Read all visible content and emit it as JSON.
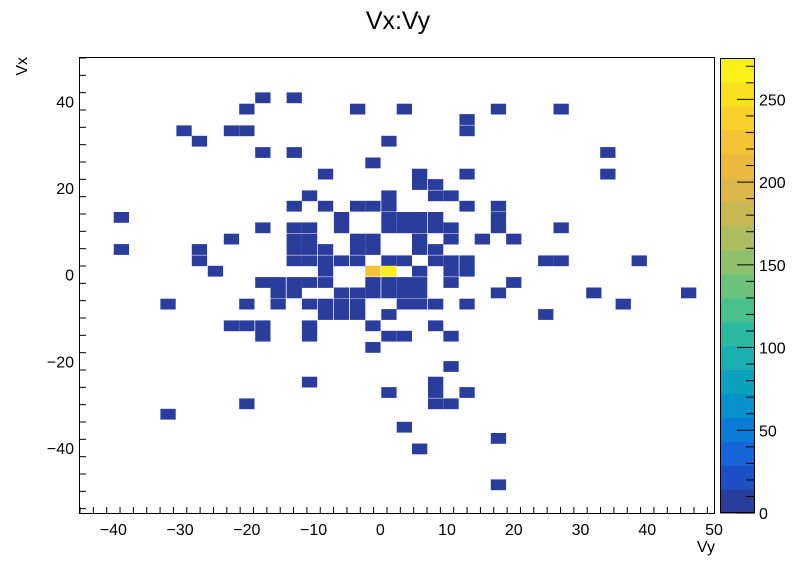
{
  "chart_data": {
    "type": "heatmap",
    "title": "Vx:Vy",
    "xlabel": "Vy",
    "ylabel": "Vx",
    "xlim": [
      -45,
      50
    ],
    "ylim": [
      -55,
      50
    ],
    "x_ticks": [
      -40,
      -30,
      -20,
      -10,
      0,
      10,
      20,
      30,
      40,
      50
    ],
    "x_tick_labels": [
      "−40",
      "−30",
      "−20",
      "−10",
      "0",
      "10",
      "20",
      "30",
      "40",
      "50"
    ],
    "y_ticks": [
      -40,
      -20,
      0,
      20,
      40
    ],
    "y_tick_labels": [
      "−40",
      "−20",
      "0",
      "20",
      "40"
    ],
    "colorbar": {
      "min": 0,
      "max": 275,
      "ticks": [
        0,
        50,
        100,
        150,
        200,
        250
      ],
      "tick_labels": [
        "0",
        "50",
        "100",
        "150",
        "200",
        "250"
      ],
      "palette": [
        "#2b3d9c",
        "#1f4fc4",
        "#1565d8",
        "#0b7bd6",
        "#0690cc",
        "#0ba2c0",
        "#1aafb1",
        "#2db9a0",
        "#49c08c",
        "#6bc27a",
        "#8fc06b",
        "#aebc60",
        "#c8b755",
        "#dcb64a",
        "#ebb93e",
        "#f4c235",
        "#f9d02a",
        "#fbe01e",
        "#fbf01a"
      ]
    },
    "x_bin_width": 2.3,
    "y_bin_width": 2.5,
    "cells": [
      {
        "vy": -17.6,
        "vx": 40.8,
        "count": 3
      },
      {
        "vy": -12.9,
        "vx": 40.8,
        "count": 3
      },
      {
        "vy": -20.0,
        "vx": 38.2,
        "count": 3
      },
      {
        "vy": -3.4,
        "vx": 38.2,
        "count": 3
      },
      {
        "vy": 3.6,
        "vx": 38.2,
        "count": 3
      },
      {
        "vy": 17.7,
        "vx": 38.2,
        "count": 3
      },
      {
        "vy": 27.1,
        "vx": 38.2,
        "count": 3
      },
      {
        "vy": 13.0,
        "vx": 35.8,
        "count": 3
      },
      {
        "vy": -29.4,
        "vx": 33.2,
        "count": 3
      },
      {
        "vy": -22.3,
        "vx": 33.2,
        "count": 3
      },
      {
        "vy": -20.0,
        "vx": 33.2,
        "count": 3
      },
      {
        "vy": 13.0,
        "vx": 33.2,
        "count": 3
      },
      {
        "vy": -27.1,
        "vx": 30.8,
        "count": 3
      },
      {
        "vy": 1.3,
        "vx": 30.8,
        "count": 3
      },
      {
        "vy": -17.6,
        "vx": 28.2,
        "count": 3
      },
      {
        "vy": -12.9,
        "vx": 28.2,
        "count": 3
      },
      {
        "vy": 34.1,
        "vx": 28.2,
        "count": 3
      },
      {
        "vy": -1.1,
        "vx": 25.8,
        "count": 3
      },
      {
        "vy": -8.2,
        "vx": 23.2,
        "count": 3
      },
      {
        "vy": 5.9,
        "vx": 23.2,
        "count": 3
      },
      {
        "vy": 13.0,
        "vx": 23.2,
        "count": 3
      },
      {
        "vy": 34.1,
        "vx": 23.2,
        "count": 3
      },
      {
        "vy": 5.9,
        "vx": 20.8,
        "count": 3
      },
      {
        "vy": 8.3,
        "vx": 20.8,
        "count": 3
      },
      {
        "vy": -10.6,
        "vx": 18.2,
        "count": 3
      },
      {
        "vy": 1.3,
        "vx": 18.2,
        "count": 3
      },
      {
        "vy": 8.3,
        "vx": 18.2,
        "count": 3
      },
      {
        "vy": 10.6,
        "vx": 18.2,
        "count": 3
      },
      {
        "vy": -12.9,
        "vx": 15.8,
        "count": 3
      },
      {
        "vy": -8.2,
        "vx": 15.8,
        "count": 3
      },
      {
        "vy": -3.4,
        "vx": 15.8,
        "count": 3
      },
      {
        "vy": -1.1,
        "vx": 15.8,
        "count": 3
      },
      {
        "vy": 1.3,
        "vx": 15.8,
        "count": 3
      },
      {
        "vy": 13.0,
        "vx": 15.8,
        "count": 3
      },
      {
        "vy": 17.7,
        "vx": 15.8,
        "count": 3
      },
      {
        "vy": -38.8,
        "vx": 13.2,
        "count": 3
      },
      {
        "vy": -5.8,
        "vx": 13.2,
        "count": 3
      },
      {
        "vy": 1.3,
        "vx": 13.2,
        "count": 3
      },
      {
        "vy": 3.6,
        "vx": 13.2,
        "count": 3
      },
      {
        "vy": 5.9,
        "vx": 13.2,
        "count": 3
      },
      {
        "vy": 8.3,
        "vx": 13.2,
        "count": 3
      },
      {
        "vy": 17.7,
        "vx": 13.2,
        "count": 3
      },
      {
        "vy": -17.6,
        "vx": 10.8,
        "count": 3
      },
      {
        "vy": -12.9,
        "vx": 10.8,
        "count": 3
      },
      {
        "vy": -10.6,
        "vx": 10.8,
        "count": 3
      },
      {
        "vy": -5.8,
        "vx": 10.8,
        "count": 3
      },
      {
        "vy": 1.3,
        "vx": 10.8,
        "count": 3
      },
      {
        "vy": 3.6,
        "vx": 10.8,
        "count": 3
      },
      {
        "vy": 5.9,
        "vx": 10.8,
        "count": 3
      },
      {
        "vy": 8.3,
        "vx": 10.8,
        "count": 3
      },
      {
        "vy": 10.6,
        "vx": 10.8,
        "count": 3
      },
      {
        "vy": 17.7,
        "vx": 10.8,
        "count": 3
      },
      {
        "vy": 27.1,
        "vx": 10.8,
        "count": 3
      },
      {
        "vy": -22.3,
        "vx": 8.2,
        "count": 3
      },
      {
        "vy": -12.9,
        "vx": 8.2,
        "count": 3
      },
      {
        "vy": -10.6,
        "vx": 8.2,
        "count": 3
      },
      {
        "vy": -3.4,
        "vx": 8.2,
        "count": 3
      },
      {
        "vy": -1.1,
        "vx": 8.2,
        "count": 3
      },
      {
        "vy": 5.9,
        "vx": 8.2,
        "count": 3
      },
      {
        "vy": 10.6,
        "vx": 8.2,
        "count": 3
      },
      {
        "vy": 15.3,
        "vx": 8.2,
        "count": 3
      },
      {
        "vy": 20.0,
        "vx": 8.2,
        "count": 3
      },
      {
        "vy": -38.8,
        "vx": 5.8,
        "count": 3
      },
      {
        "vy": -27.1,
        "vx": 5.8,
        "count": 3
      },
      {
        "vy": -12.9,
        "vx": 5.8,
        "count": 3
      },
      {
        "vy": -10.6,
        "vx": 5.8,
        "count": 3
      },
      {
        "vy": -8.2,
        "vx": 5.8,
        "count": 3
      },
      {
        "vy": -3.4,
        "vx": 5.8,
        "count": 3
      },
      {
        "vy": -1.1,
        "vx": 5.8,
        "count": 3
      },
      {
        "vy": 5.9,
        "vx": 5.8,
        "count": 3
      },
      {
        "vy": 8.3,
        "vx": 5.8,
        "count": 3
      },
      {
        "vy": -27.1,
        "vx": 3.2,
        "count": 3
      },
      {
        "vy": -12.9,
        "vx": 3.2,
        "count": 3
      },
      {
        "vy": -10.6,
        "vx": 3.2,
        "count": 3
      },
      {
        "vy": -8.2,
        "vx": 3.2,
        "count": 3
      },
      {
        "vy": -5.8,
        "vx": 3.2,
        "count": 3
      },
      {
        "vy": -3.4,
        "vx": 3.2,
        "count": 3
      },
      {
        "vy": 1.3,
        "vx": 3.2,
        "count": 3
      },
      {
        "vy": 3.6,
        "vx": 3.2,
        "count": 3
      },
      {
        "vy": 8.3,
        "vx": 3.2,
        "count": 3
      },
      {
        "vy": 10.6,
        "vx": 3.2,
        "count": 3
      },
      {
        "vy": 13.0,
        "vx": 3.2,
        "count": 3
      },
      {
        "vy": 24.8,
        "vx": 3.2,
        "count": 3
      },
      {
        "vy": 27.1,
        "vx": 3.2,
        "count": 3
      },
      {
        "vy": 38.8,
        "vx": 3.2,
        "count": 3
      },
      {
        "vy": -24.7,
        "vx": 0.8,
        "count": 3
      },
      {
        "vy": -8.2,
        "vx": 0.8,
        "count": 3
      },
      {
        "vy": -1.1,
        "vx": 0.8,
        "count": 220
      },
      {
        "vy": 1.3,
        "vx": 0.8,
        "count": 275
      },
      {
        "vy": 5.9,
        "vx": 0.8,
        "count": 3
      },
      {
        "vy": 10.6,
        "vx": 0.8,
        "count": 3
      },
      {
        "vy": 13.0,
        "vx": 0.8,
        "count": 3
      },
      {
        "vy": -17.6,
        "vx": -1.8,
        "count": 3
      },
      {
        "vy": -15.3,
        "vx": -1.8,
        "count": 3
      },
      {
        "vy": -12.9,
        "vx": -1.8,
        "count": 3
      },
      {
        "vy": -10.6,
        "vx": -1.8,
        "count": 3
      },
      {
        "vy": -8.2,
        "vx": -1.8,
        "count": 3
      },
      {
        "vy": -1.1,
        "vx": -1.8,
        "count": 3
      },
      {
        "vy": 1.3,
        "vx": -1.8,
        "count": 3
      },
      {
        "vy": 3.6,
        "vx": -1.8,
        "count": 3
      },
      {
        "vy": 5.9,
        "vx": -1.8,
        "count": 3
      },
      {
        "vy": 10.6,
        "vx": -1.8,
        "count": 3
      },
      {
        "vy": 20.0,
        "vx": -1.8,
        "count": 3
      },
      {
        "vy": -15.3,
        "vx": -4.2,
        "count": 3
      },
      {
        "vy": -12.9,
        "vx": -4.2,
        "count": 3
      },
      {
        "vy": -5.8,
        "vx": -4.2,
        "count": 3
      },
      {
        "vy": -3.4,
        "vx": -4.2,
        "count": 3
      },
      {
        "vy": -1.1,
        "vx": -4.2,
        "count": 3
      },
      {
        "vy": 1.3,
        "vx": -4.2,
        "count": 3
      },
      {
        "vy": 3.6,
        "vx": -4.2,
        "count": 3
      },
      {
        "vy": 5.9,
        "vx": -4.2,
        "count": 3
      },
      {
        "vy": 17.7,
        "vx": -4.2,
        "count": 3
      },
      {
        "vy": 32.0,
        "vx": -4.2,
        "count": 3
      },
      {
        "vy": 46.2,
        "vx": -4.2,
        "count": 3
      },
      {
        "vy": -31.8,
        "vx": -6.8,
        "count": 3
      },
      {
        "vy": -20.0,
        "vx": -6.8,
        "count": 3
      },
      {
        "vy": -15.3,
        "vx": -6.8,
        "count": 3
      },
      {
        "vy": -10.6,
        "vx": -6.8,
        "count": 3
      },
      {
        "vy": -8.2,
        "vx": -6.8,
        "count": 3
      },
      {
        "vy": -5.8,
        "vx": -6.8,
        "count": 3
      },
      {
        "vy": -3.4,
        "vx": -6.8,
        "count": 3
      },
      {
        "vy": 3.6,
        "vx": -6.8,
        "count": 3
      },
      {
        "vy": 5.9,
        "vx": -6.8,
        "count": 3
      },
      {
        "vy": 8.3,
        "vx": -6.8,
        "count": 3
      },
      {
        "vy": 13.0,
        "vx": -6.8,
        "count": 3
      },
      {
        "vy": 36.4,
        "vx": -6.8,
        "count": 3
      },
      {
        "vy": -8.2,
        "vx": -9.2,
        "count": 3
      },
      {
        "vy": -5.8,
        "vx": -9.2,
        "count": 3
      },
      {
        "vy": -3.4,
        "vx": -9.2,
        "count": 3
      },
      {
        "vy": 1.3,
        "vx": -9.2,
        "count": 3
      },
      {
        "vy": 24.8,
        "vx": -9.2,
        "count": 3
      },
      {
        "vy": -22.3,
        "vx": -11.8,
        "count": 3
      },
      {
        "vy": -20.0,
        "vx": -11.8,
        "count": 3
      },
      {
        "vy": -17.6,
        "vx": -11.8,
        "count": 3
      },
      {
        "vy": -10.6,
        "vx": -11.8,
        "count": 3
      },
      {
        "vy": -1.1,
        "vx": -11.8,
        "count": 3
      },
      {
        "vy": 8.3,
        "vx": -11.8,
        "count": 3
      },
      {
        "vy": -17.6,
        "vx": -14.2,
        "count": 3
      },
      {
        "vy": -10.6,
        "vx": -14.2,
        "count": 3
      },
      {
        "vy": 1.3,
        "vx": -14.2,
        "count": 3
      },
      {
        "vy": 3.6,
        "vx": -14.2,
        "count": 3
      },
      {
        "vy": 10.6,
        "vx": -14.2,
        "count": 3
      },
      {
        "vy": -1.1,
        "vx": -16.8,
        "count": 3
      },
      {
        "vy": 10.6,
        "vx": -21.2,
        "count": 3
      },
      {
        "vy": -10.6,
        "vx": -24.8,
        "count": 3
      },
      {
        "vy": 1.3,
        "vx": -27.2,
        "count": 3
      },
      {
        "vy": 8.3,
        "vx": -24.8,
        "count": 3
      },
      {
        "vy": 8.3,
        "vx": -27.2,
        "count": 3
      },
      {
        "vy": 13.0,
        "vx": -27.2,
        "count": 3
      },
      {
        "vy": -20.0,
        "vx": -29.8,
        "count": 3
      },
      {
        "vy": 8.3,
        "vx": -29.8,
        "count": 3
      },
      {
        "vy": 10.6,
        "vx": -29.8,
        "count": 3
      },
      {
        "vy": -31.8,
        "vx": -32.2,
        "count": 3
      },
      {
        "vy": 3.6,
        "vx": -35.2,
        "count": 3
      },
      {
        "vy": 17.7,
        "vx": -37.8,
        "count": 3
      },
      {
        "vy": 5.9,
        "vx": -40.2,
        "count": 3
      },
      {
        "vy": 17.7,
        "vx": -48.5,
        "count": 3
      }
    ]
  }
}
